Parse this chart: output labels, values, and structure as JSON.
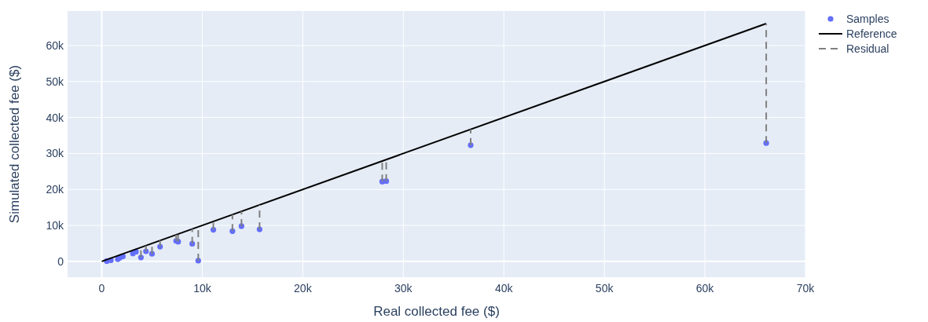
{
  "chart_data": {
    "type": "scatter",
    "xlabel": "Real collected fee ($)",
    "ylabel": "Simulated collected fee ($)",
    "xlim": [
      -3400,
      70000
    ],
    "ylim": [
      -4400,
      69600
    ],
    "xticks": [
      0,
      {
        "value": 10000,
        "label": "10k"
      },
      {
        "value": 20000,
        "label": "20k"
      },
      {
        "value": 30000,
        "label": "30k"
      },
      {
        "value": 40000,
        "label": "40k"
      },
      {
        "value": 50000,
        "label": "50k"
      },
      {
        "value": 60000,
        "label": "60k"
      },
      {
        "value": 70000,
        "label": "70k"
      }
    ],
    "yticks": [
      0,
      {
        "value": 10000,
        "label": "10k"
      },
      {
        "value": 20000,
        "label": "20k"
      },
      {
        "value": 30000,
        "label": "30k"
      },
      {
        "value": 40000,
        "label": "40k"
      },
      {
        "value": 50000,
        "label": "50k"
      },
      {
        "value": 60000,
        "label": "60k"
      }
    ],
    "grid": true,
    "legend": "top right",
    "series": [
      {
        "name": "Samples",
        "color": "#636efa",
        "x": [
          500,
          900,
          1600,
          1800,
          2100,
          3100,
          3400,
          3900,
          4400,
          5000,
          5800,
          7400,
          7600,
          9000,
          9600,
          11100,
          13000,
          13900,
          15700,
          27900,
          28300,
          36700,
          66100
        ],
        "values": [
          100,
          300,
          600,
          1000,
          1400,
          2200,
          2700,
          1100,
          2800,
          2100,
          4100,
          5700,
          5500,
          4900,
          200,
          8800,
          8400,
          9800,
          8900,
          22200,
          22300,
          32300,
          32900
        ]
      },
      {
        "name": "Reference",
        "type": "line",
        "color": "#000000",
        "line_style": "solid",
        "x": [
          0,
          66100
        ],
        "values": [
          0,
          66100
        ]
      },
      {
        "name": "Residual",
        "type": "line",
        "color": "#808080",
        "line_style": "dashed",
        "x": [
          3900,
          3900,
          null,
          4400,
          4400,
          null,
          5000,
          5000,
          null,
          5800,
          5800,
          null,
          7400,
          7400,
          null,
          7600,
          7600,
          null,
          9000,
          9000,
          null,
          9600,
          9600,
          null,
          11100,
          11100,
          null,
          13000,
          13000,
          null,
          13900,
          13900,
          null,
          15700,
          15700,
          null,
          27900,
          27900,
          null,
          28300,
          28300,
          null,
          36700,
          36700,
          null,
          66100,
          66100
        ],
        "values": [
          1100,
          3900,
          null,
          2800,
          4400,
          null,
          2100,
          5000,
          null,
          4100,
          5800,
          null,
          5700,
          7400,
          null,
          5500,
          7600,
          null,
          4900,
          9000,
          null,
          200,
          9600,
          null,
          8800,
          11100,
          null,
          8400,
          13000,
          null,
          9800,
          13900,
          null,
          8900,
          15700,
          null,
          22200,
          27900,
          null,
          22300,
          28300,
          null,
          32300,
          36700,
          null,
          32900,
          66100
        ]
      }
    ]
  }
}
